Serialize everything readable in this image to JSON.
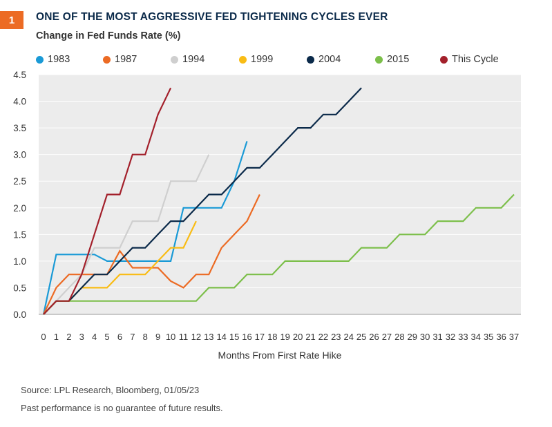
{
  "figure": {
    "number": "1",
    "title": "ONE OF THE MOST AGGRESSIVE FED TIGHTENING CYCLES EVER",
    "subtitle": "Change in Fed Funds Rate (%)"
  },
  "footer": {
    "source": "Source: LPL Research, Bloomberg, 01/05/23",
    "disclaimer": "Past performance is no guarantee of future results."
  },
  "chart_data": {
    "type": "line",
    "xlabel": "Months From First Rate Hike",
    "ylabel": "",
    "xlim": [
      0,
      37
    ],
    "ylim": [
      0,
      4.5
    ],
    "x_ticks": [
      0,
      1,
      2,
      3,
      4,
      5,
      6,
      7,
      8,
      9,
      10,
      11,
      12,
      13,
      14,
      15,
      16,
      17,
      18,
      19,
      20,
      21,
      22,
      23,
      24,
      25,
      26,
      27,
      28,
      29,
      30,
      31,
      32,
      33,
      34,
      35,
      36,
      37
    ],
    "y_ticks": [
      "0.0",
      "0.5",
      "1.0",
      "1.5",
      "2.0",
      "2.5",
      "3.0",
      "3.5",
      "4.0",
      "4.5"
    ],
    "y_tick_values": [
      0,
      0.5,
      1.0,
      1.5,
      2.0,
      2.5,
      3.0,
      3.5,
      4.0,
      4.5
    ],
    "grid": "horizontal",
    "plot_background": "#ececec",
    "legend_position": "top",
    "series": [
      {
        "name": "1983",
        "color": "#1a9ad6",
        "values": [
          [
            0,
            0
          ],
          [
            1,
            1.125
          ],
          [
            2,
            1.125
          ],
          [
            3,
            1.125
          ],
          [
            4,
            1.125
          ],
          [
            5,
            1.0
          ],
          [
            6,
            1.0
          ],
          [
            7,
            1.0
          ],
          [
            8,
            1.0
          ],
          [
            9,
            1.0
          ],
          [
            10,
            1.0
          ],
          [
            11,
            2.0
          ],
          [
            12,
            2.0
          ],
          [
            13,
            2.0
          ],
          [
            14,
            2.0
          ],
          [
            15,
            2.5
          ],
          [
            16,
            3.25
          ]
        ]
      },
      {
        "name": "1987",
        "color": "#ec6b24",
        "values": [
          [
            0,
            0
          ],
          [
            1,
            0.5
          ],
          [
            2,
            0.75
          ],
          [
            3,
            0.75
          ],
          [
            4,
            0.75
          ],
          [
            5,
            0.75
          ],
          [
            6,
            1.19
          ],
          [
            7,
            0.875
          ],
          [
            8,
            0.875
          ],
          [
            9,
            0.875
          ],
          [
            10,
            0.625
          ],
          [
            11,
            0.5
          ],
          [
            12,
            0.75
          ],
          [
            13,
            0.75
          ],
          [
            14,
            1.25
          ],
          [
            15,
            1.5
          ],
          [
            16,
            1.75
          ],
          [
            17,
            2.25
          ]
        ]
      },
      {
        "name": "1994",
        "color": "#cfcfcf",
        "values": [
          [
            0,
            0
          ],
          [
            1,
            0.25
          ],
          [
            2,
            0.5
          ],
          [
            3,
            0.75
          ],
          [
            4,
            1.25
          ],
          [
            5,
            1.25
          ],
          [
            6,
            1.25
          ],
          [
            7,
            1.75
          ],
          [
            8,
            1.75
          ],
          [
            9,
            1.75
          ],
          [
            10,
            2.5
          ],
          [
            11,
            2.5
          ],
          [
            12,
            2.5
          ],
          [
            13,
            3.0
          ]
        ]
      },
      {
        "name": "1999",
        "color": "#f9bc15",
        "values": [
          [
            0,
            0
          ],
          [
            1,
            0.25
          ],
          [
            2,
            0.25
          ],
          [
            3,
            0.5
          ],
          [
            4,
            0.5
          ],
          [
            5,
            0.5
          ],
          [
            6,
            0.75
          ],
          [
            7,
            0.75
          ],
          [
            8,
            0.75
          ],
          [
            9,
            1.0
          ],
          [
            10,
            1.25
          ],
          [
            11,
            1.25
          ],
          [
            12,
            1.75
          ]
        ]
      },
      {
        "name": "2004",
        "color": "#0b2a4a",
        "values": [
          [
            0,
            0
          ],
          [
            1,
            0.25
          ],
          [
            2,
            0.25
          ],
          [
            3,
            0.5
          ],
          [
            4,
            0.75
          ],
          [
            5,
            0.75
          ],
          [
            6,
            1.0
          ],
          [
            7,
            1.25
          ],
          [
            8,
            1.25
          ],
          [
            9,
            1.5
          ],
          [
            10,
            1.75
          ],
          [
            11,
            1.75
          ],
          [
            12,
            2.0
          ],
          [
            13,
            2.25
          ],
          [
            14,
            2.25
          ],
          [
            15,
            2.5
          ],
          [
            16,
            2.75
          ],
          [
            17,
            2.75
          ],
          [
            18,
            3.0
          ],
          [
            19,
            3.25
          ],
          [
            20,
            3.5
          ],
          [
            21,
            3.5
          ],
          [
            22,
            3.75
          ],
          [
            23,
            3.75
          ],
          [
            24,
            4.0
          ],
          [
            25,
            4.25
          ]
        ]
      },
      {
        "name": "2015",
        "color": "#7cbf4a",
        "values": [
          [
            0,
            0
          ],
          [
            1,
            0.25
          ],
          [
            2,
            0.25
          ],
          [
            3,
            0.25
          ],
          [
            4,
            0.25
          ],
          [
            5,
            0.25
          ],
          [
            6,
            0.25
          ],
          [
            7,
            0.25
          ],
          [
            8,
            0.25
          ],
          [
            9,
            0.25
          ],
          [
            10,
            0.25
          ],
          [
            11,
            0.25
          ],
          [
            12,
            0.25
          ],
          [
            13,
            0.5
          ],
          [
            14,
            0.5
          ],
          [
            15,
            0.5
          ],
          [
            16,
            0.75
          ],
          [
            17,
            0.75
          ],
          [
            18,
            0.75
          ],
          [
            19,
            1.0
          ],
          [
            20,
            1.0
          ],
          [
            21,
            1.0
          ],
          [
            22,
            1.0
          ],
          [
            23,
            1.0
          ],
          [
            24,
            1.0
          ],
          [
            25,
            1.25
          ],
          [
            26,
            1.25
          ],
          [
            27,
            1.25
          ],
          [
            28,
            1.5
          ],
          [
            29,
            1.5
          ],
          [
            30,
            1.5
          ],
          [
            31,
            1.75
          ],
          [
            32,
            1.75
          ],
          [
            33,
            1.75
          ],
          [
            34,
            2.0
          ],
          [
            35,
            2.0
          ],
          [
            36,
            2.0
          ],
          [
            37,
            2.25
          ]
        ]
      },
      {
        "name": "This Cycle",
        "color": "#a3202b",
        "values": [
          [
            0,
            0
          ],
          [
            1,
            0.25
          ],
          [
            2,
            0.25
          ],
          [
            3,
            0.75
          ],
          [
            4,
            1.5
          ],
          [
            5,
            2.25
          ],
          [
            6,
            2.25
          ],
          [
            7,
            3.0
          ],
          [
            8,
            3.0
          ],
          [
            9,
            3.75
          ],
          [
            10,
            4.25
          ]
        ]
      }
    ]
  }
}
